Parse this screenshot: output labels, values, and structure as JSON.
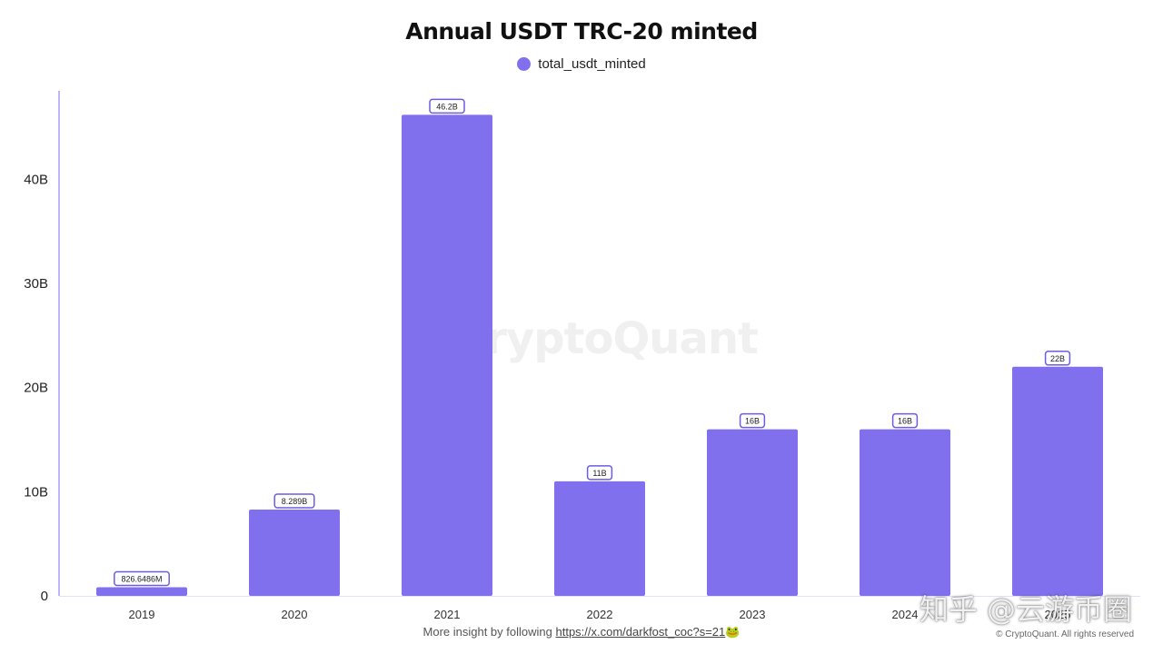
{
  "chart_data": {
    "type": "bar",
    "title": "Annual USDT TRC-20 minted",
    "series": [
      {
        "name": "total_usdt_minted",
        "values": [
          826648600,
          8289000000,
          46200000000,
          11000000000,
          16000000000,
          16000000000,
          22000000000
        ],
        "labels": [
          "826.6486M",
          "8.289B",
          "46.2B",
          "11B",
          "16B",
          "16B",
          "22B"
        ]
      }
    ],
    "categories": [
      "2019",
      "2020",
      "2021",
      "2022",
      "2023",
      "2024",
      "2025"
    ],
    "ylim": [
      0,
      48500000000
    ],
    "yticks": [
      0,
      10000000000,
      20000000000,
      30000000000,
      40000000000
    ],
    "ytick_labels": [
      "0",
      "10B",
      "20B",
      "30B",
      "40B"
    ],
    "xlabel": "",
    "ylabel": "",
    "legend_position": "top-center",
    "grid": false,
    "colors": {
      "bar": "#8170ee",
      "axis": "#a89df3",
      "label_border": "#6c5ce0"
    }
  },
  "watermark": "CryptoQuant",
  "footer": {
    "prefix": "More insight by following ",
    "link": "https://x.com/darkfost_coc?s=21",
    "emoji": "🐸"
  },
  "copyright": "© CryptoQuant. All rights reserved",
  "overlay_watermark": "知乎 @云游币圈"
}
